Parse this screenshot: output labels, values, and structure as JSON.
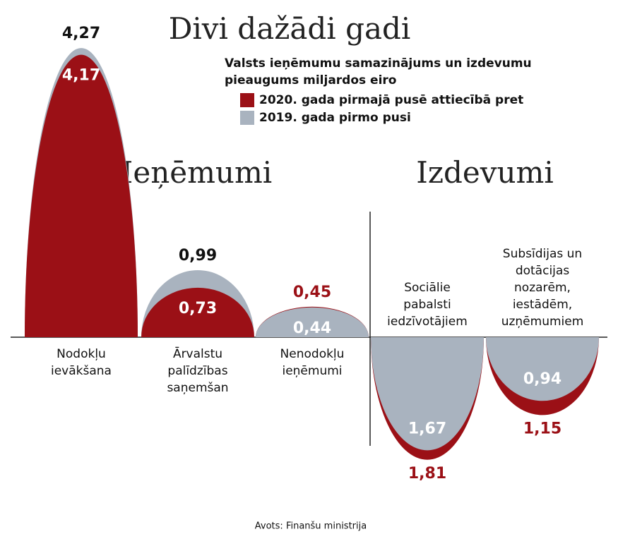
{
  "chart_data": {
    "type": "bar",
    "title": "Divi dažādi gadi",
    "subtitle": [
      "Valsts ieņēmumu samazinājums un izdevumu",
      "pieaugums miljardos eiro"
    ],
    "series": [
      {
        "name": "2020. gada pirmajā pusē attiecībā pret",
        "color": "#9b1016"
      },
      {
        "name": "2019. gada pirmo pusi",
        "color": "#a9b3bf"
      }
    ],
    "groups": [
      {
        "name": "Ieņēmumi",
        "direction": "up",
        "categories": [
          [
            "Nodokļu",
            "ievākšana"
          ],
          [
            "Ārvalstu",
            "palīdzības",
            "saņemšan"
          ],
          [
            "Nenodokļu",
            "ieņēmumi"
          ]
        ],
        "values": [
          [
            4.17,
            0.73,
            0.45
          ],
          [
            4.27,
            0.99,
            0.44
          ]
        ],
        "value_labels": [
          [
            "4,17",
            "0,73",
            "0,45"
          ],
          [
            "4,27",
            "0,99",
            "0,44"
          ]
        ]
      },
      {
        "name": "Izdevumi",
        "direction": "down",
        "categories": [
          [
            "Sociālie",
            "pabalsti",
            "iedzīvotājiem"
          ],
          [
            "Subsīdijas un",
            "dotācijas",
            "nozarēm,",
            "iestādēm,",
            "uzņēmumiem"
          ]
        ],
        "values": [
          [
            1.81,
            1.15
          ],
          [
            1.67,
            0.94
          ]
        ],
        "value_labels": [
          [
            "1,81",
            "1,15"
          ],
          [
            "1,67",
            "0,94"
          ]
        ]
      }
    ],
    "source": "Avots: Finanšu ministrija"
  }
}
